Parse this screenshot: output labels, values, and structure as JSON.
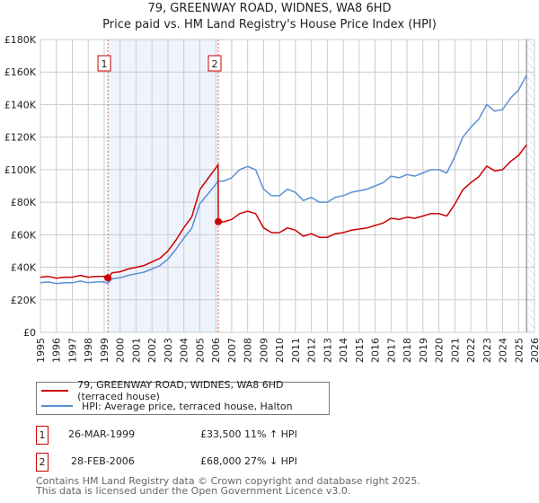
{
  "title": "79, GREENWAY ROAD, WIDNES, WA8 6HD",
  "subtitle": "Price paid vs. HM Land Registry's House Price Index (HPI)",
  "chart_data": {
    "type": "line",
    "xlim": [
      1995,
      2026
    ],
    "ylim": [
      0,
      180000
    ],
    "yticks": [
      0,
      20000,
      40000,
      60000,
      80000,
      100000,
      120000,
      140000,
      160000,
      180000
    ],
    "ytick_labels": [
      "£0",
      "£20K",
      "£40K",
      "£60K",
      "£80K",
      "£100K",
      "£120K",
      "£140K",
      "£160K",
      "£180K"
    ],
    "xticks": [
      1995,
      1996,
      1997,
      1998,
      1999,
      2000,
      2001,
      2002,
      2003,
      2004,
      2005,
      2006,
      2007,
      2008,
      2009,
      2010,
      2011,
      2012,
      2013,
      2014,
      2015,
      2016,
      2017,
      2018,
      2019,
      2020,
      2021,
      2022,
      2023,
      2024,
      2025,
      2026
    ],
    "grid": true,
    "shaded_span": [
      1999.23,
      2006.16
    ],
    "forecast_start": 2025.5,
    "series": [
      {
        "name": "79, GREENWAY ROAD, WIDNES, WA8 6HD (terraced house)",
        "color": "#cc0000",
        "x": [
          1995,
          1995.5,
          1996,
          1996.5,
          1997,
          1997.5,
          1998,
          1998.5,
          1999,
          1999.23,
          1999.5,
          2000,
          2000.5,
          2001,
          2001.5,
          2002,
          2002.5,
          2003,
          2003.5,
          2004,
          2004.5,
          2005,
          2005.5,
          2006,
          2006.15,
          2006.16,
          2006.5,
          2007,
          2007.5,
          2008,
          2008.5,
          2009,
          2009.5,
          2010,
          2010.5,
          2011,
          2011.5,
          2012,
          2012.5,
          2013,
          2013.5,
          2014,
          2014.5,
          2015,
          2015.5,
          2016,
          2016.5,
          2017,
          2017.5,
          2018,
          2018.5,
          2019,
          2019.5,
          2020,
          2020.5,
          2021,
          2021.5,
          2022,
          2022.5,
          2023,
          2023.5,
          2024,
          2024.5,
          2025,
          2025.5
        ],
        "y": [
          33900,
          34400,
          33300,
          33900,
          33900,
          35000,
          33900,
          34400,
          34400,
          33500,
          36600,
          37200,
          38900,
          40000,
          41100,
          43300,
          45500,
          50000,
          56600,
          64400,
          71000,
          87700,
          94400,
          101000,
          103200,
          68000,
          67900,
          69400,
          73000,
          74500,
          73000,
          64200,
          61300,
          61300,
          64200,
          62800,
          59100,
          60600,
          58400,
          58400,
          60600,
          61300,
          62800,
          63500,
          64200,
          65700,
          67200,
          70100,
          69400,
          70800,
          70100,
          71500,
          73000,
          73000,
          71500,
          78800,
          87600,
          92000,
          95600,
          102200,
          99300,
          100000,
          105100,
          108800,
          115300
        ]
      },
      {
        "name": "HPI: Average price, terraced house, Halton",
        "color": "#5b8fd4",
        "x": [
          1995,
          1995.5,
          1996,
          1996.5,
          1997,
          1997.5,
          1998,
          1998.5,
          1999,
          1999.23,
          1999.5,
          2000,
          2000.5,
          2001,
          2001.5,
          2002,
          2002.5,
          2003,
          2003.5,
          2004,
          2004.5,
          2005,
          2005.5,
          2006,
          2006.16,
          2006.5,
          2007,
          2007.5,
          2008,
          2008.5,
          2009,
          2009.5,
          2010,
          2010.5,
          2011,
          2011.5,
          2012,
          2012.5,
          2013,
          2013.5,
          2014,
          2014.5,
          2015,
          2015.5,
          2016,
          2016.5,
          2017,
          2017.5,
          2018,
          2018.5,
          2019,
          2019.5,
          2020,
          2020.5,
          2021,
          2021.5,
          2022,
          2022.5,
          2023,
          2023.5,
          2024,
          2024.5,
          2025,
          2025.5
        ],
        "y": [
          30500,
          31000,
          30000,
          30500,
          30500,
          31500,
          30500,
          31000,
          31000,
          30200,
          33000,
          33500,
          35000,
          36000,
          37000,
          39000,
          41000,
          45000,
          51000,
          58000,
          64000,
          79000,
          85000,
          91000,
          93000,
          93000,
          95000,
          100000,
          102000,
          100000,
          88000,
          84000,
          84000,
          88000,
          86000,
          81000,
          83000,
          80000,
          80000,
          83000,
          84000,
          86000,
          87000,
          88000,
          90000,
          92000,
          96000,
          95000,
          97000,
          96000,
          98000,
          100000,
          100000,
          98000,
          108000,
          120000,
          126000,
          131000,
          140000,
          136000,
          137000,
          144000,
          149000,
          158000
        ]
      }
    ],
    "sales": [
      {
        "label": "1",
        "x": 1999.23,
        "y": 33500
      },
      {
        "label": "2",
        "x": 2006.16,
        "y": 68000
      }
    ]
  },
  "legend": {
    "property": "79, GREENWAY ROAD, WIDNES, WA8 6HD (terraced house)",
    "hpi": "HPI: Average price, terraced house, Halton"
  },
  "transactions": [
    {
      "num": "1",
      "date": "26-MAR-1999",
      "price": "£33,500",
      "hpi": "11% ↑ HPI"
    },
    {
      "num": "2",
      "date": "28-FEB-2006",
      "price": "£68,000",
      "hpi": "27% ↓ HPI"
    }
  ],
  "footer": {
    "line1": "Contains HM Land Registry data © Crown copyright and database right 2025.",
    "line2": "This data is licensed under the Open Government Licence v3.0."
  },
  "colors": {
    "property": "#cc0000",
    "hpi": "#5b8fd4",
    "shade": "#eef3fc"
  }
}
